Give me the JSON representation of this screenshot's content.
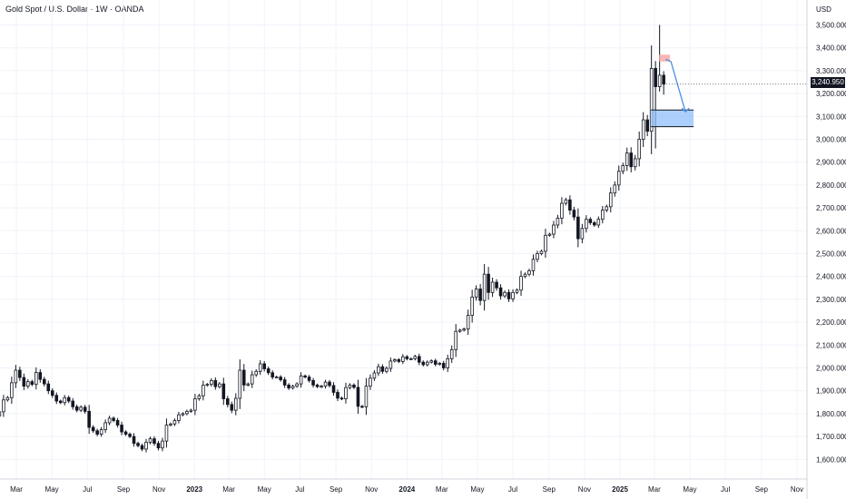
{
  "header": {
    "title": "Gold Spot / U.S. Dollar · 1W · OANDA",
    "currency": "USD",
    "last_price_label": "3,240.950"
  },
  "chart_data": {
    "type": "candlestick",
    "title": "Gold Spot / U.S. Dollar · 1W · OANDA",
    "ylabel": "USD",
    "ylim": [
      1520,
      3540
    ],
    "y_ticks": [
      1600,
      1700,
      1800,
      1900,
      2000,
      2100,
      2200,
      2300,
      2400,
      2500,
      2600,
      2700,
      2800,
      2900,
      3000,
      3100,
      3200,
      3300,
      3400,
      3500
    ],
    "y_tick_labels": [
      "1,600.000",
      "1,700.000",
      "1,800.000",
      "1,900.000",
      "2,000.000",
      "2,100.000",
      "2,200.000",
      "2,300.000",
      "2,400.000",
      "2,500.000",
      "2,600.000",
      "2,700.000",
      "2,800.000",
      "2,900.000",
      "3,000.000",
      "3,100.000",
      "3,200.000",
      "3,300.000",
      "3,400.000",
      "3,500.000"
    ],
    "x_ticks": [
      {
        "label": "Mar",
        "date": "2022-03-01"
      },
      {
        "label": "May",
        "date": "2022-05-01"
      },
      {
        "label": "Jul",
        "date": "2022-07-01"
      },
      {
        "label": "Sep",
        "date": "2022-09-01"
      },
      {
        "label": "Nov",
        "date": "2022-11-01"
      },
      {
        "label": "2023",
        "date": "2023-01-01"
      },
      {
        "label": "Mar",
        "date": "2023-03-01"
      },
      {
        "label": "May",
        "date": "2023-05-01"
      },
      {
        "label": "Jul",
        "date": "2023-07-01"
      },
      {
        "label": "Sep",
        "date": "2023-09-01"
      },
      {
        "label": "Nov",
        "date": "2023-11-01"
      },
      {
        "label": "2024",
        "date": "2024-01-01"
      },
      {
        "label": "Mar",
        "date": "2024-03-01"
      },
      {
        "label": "May",
        "date": "2024-05-01"
      },
      {
        "label": "Jul",
        "date": "2024-07-01"
      },
      {
        "label": "Sep",
        "date": "2024-09-01"
      },
      {
        "label": "Nov",
        "date": "2024-11-01"
      },
      {
        "label": "2025",
        "date": "2025-01-01"
      },
      {
        "label": "Mar",
        "date": "2025-03-01"
      },
      {
        "label": "May",
        "date": "2025-05-01"
      },
      {
        "label": "Jul",
        "date": "2025-07-01"
      },
      {
        "label": "Sep",
        "date": "2025-09-01"
      },
      {
        "label": "Nov",
        "date": "2025-11-01"
      }
    ],
    "candle_dates": {
      "first": "2022-01-17",
      "last": "2025-04-21",
      "interval": "1W"
    },
    "candles_close": [
      1840,
      1790,
      1808,
      1860,
      1870,
      1935,
      1990,
      1958,
      1920,
      1940,
      1928,
      1980,
      1950,
      1930,
      1900,
      1880,
      1855,
      1848,
      1870,
      1855,
      1830,
      1815,
      1828,
      1810,
      1740,
      1725,
      1710,
      1730,
      1760,
      1780,
      1770,
      1750,
      1720,
      1710,
      1700,
      1670,
      1660,
      1645,
      1675,
      1690,
      1670,
      1650,
      1680,
      1750,
      1755,
      1770,
      1795,
      1800,
      1810,
      1815,
      1865,
      1878,
      1924,
      1928,
      1945,
      1918,
      1930,
      1865,
      1840,
      1815,
      1867,
      1990,
      1925,
      1930,
      1970,
      1985,
      2018,
      1996,
      1979,
      1960,
      1960,
      1948,
      1925,
      1912,
      1920,
      1930,
      1965,
      1960,
      1945,
      1925,
      1918,
      1920,
      1938,
      1923,
      1893,
      1868,
      1865,
      1914,
      1925,
      1915,
      1832,
      1830,
      1920,
      1955,
      1978,
      2005,
      1985,
      1998,
      2030,
      2036,
      2028,
      2049,
      2040,
      2040,
      2050,
      2025,
      2014,
      2025,
      2031,
      2016,
      2020,
      2000,
      2040,
      2080,
      2160,
      2165,
      2170,
      2230,
      2310,
      2345,
      2295,
      2410,
      2330,
      2375,
      2350,
      2315,
      2330,
      2302,
      2330,
      2340,
      2400,
      2410,
      2425,
      2475,
      2500,
      2510,
      2580,
      2585,
      2625,
      2655,
      2720,
      2735,
      2690,
      2660,
      2565,
      2610,
      2650,
      2635,
      2625,
      2650,
      2690,
      2705,
      2765,
      2800,
      2860,
      2885,
      2940,
      2880,
      2915,
      3000,
      3085,
      3035,
      3310,
      3230,
      3280,
      3240.95
    ],
    "last_close": 3240.95,
    "annotations": {
      "target_zone": {
        "low": 3055,
        "high": 3128,
        "color": "#90bff9"
      },
      "resistance_zone": {
        "low": 3340,
        "high": 3370,
        "color": "#f7a9a9"
      },
      "projection_path": [
        3350,
        3340,
        3120
      ],
      "projection_color": "#4a90e2"
    }
  }
}
